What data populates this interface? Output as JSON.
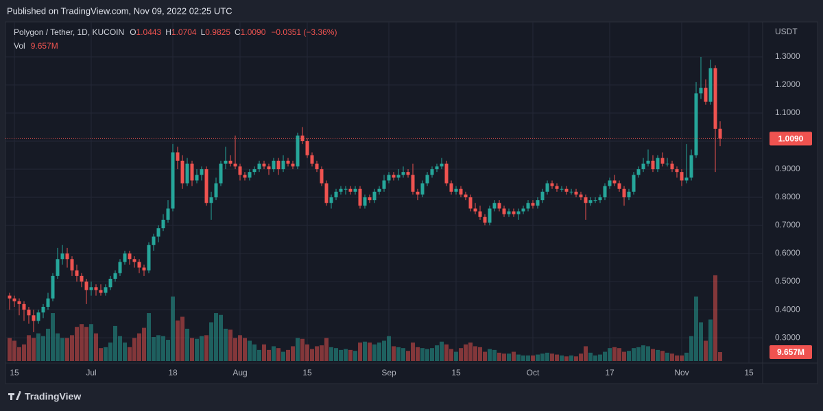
{
  "chart_data": {
    "type": "candlestick",
    "publish_note": "Published on TradingView.com, Nov 09, 2022 02:25 UTC",
    "symbol": "Polygon / Tether, 1D, KUCOIN",
    "legend": [
      {
        "key": "O",
        "value": 1.0443
      },
      {
        "key": "H",
        "value": 1.0704
      },
      {
        "key": "L",
        "value": 0.9825
      },
      {
        "key": "C",
        "value": {
          "value": 1.009,
          "label": "1.0090"
        }
      }
    ],
    "change": "−0.0351 (−3.36%)",
    "vol": {
      "label": "Vol",
      "value": 9.657,
      "value_label": "9.657M"
    },
    "last_price": {
      "value": 1.009,
      "label": "1.0090"
    },
    "y_unit": "USDT",
    "brand": "TradingView",
    "up_color": "#26a69a",
    "down_color": "#ef5350",
    "grid": true,
    "ylim": [
      0.2173,
      1.4049
    ],
    "yticks": [
      {
        "value": 0.3,
        "label": "0.3000"
      },
      {
        "value": 0.4,
        "label": "0.4000"
      },
      {
        "value": 0.5,
        "label": "0.5000"
      },
      {
        "value": 0.6,
        "label": "0.6000"
      },
      {
        "value": 0.7,
        "label": "0.7000"
      },
      {
        "value": 0.8,
        "label": "0.8000"
      },
      {
        "value": 0.9,
        "label": "0.9000"
      },
      {
        "value": 1.0,
        "label": "1.0000"
      },
      {
        "value": 1.1,
        "label": "1.1000"
      },
      {
        "value": 1.2,
        "label": "1.2000"
      },
      {
        "value": 1.3,
        "label": "1.3000"
      }
    ],
    "volume_ylim": [
      0,
      362
    ],
    "xlim": [
      "2022-06-13",
      "2022-11-18"
    ],
    "xticks": [
      {
        "value": "2022-06-15",
        "label": "15"
      },
      {
        "value": "2022-07-01",
        "label": "Jul"
      },
      {
        "value": "2022-07-18",
        "label": "18"
      },
      {
        "value": "2022-08-01",
        "label": "Aug"
      },
      {
        "value": "2022-08-15",
        "label": "15"
      },
      {
        "value": "2022-09-01",
        "label": "Sep"
      },
      {
        "value": "2022-09-15",
        "label": "15"
      },
      {
        "value": "2022-10-01",
        "label": "Oct"
      },
      {
        "value": "2022-10-17",
        "label": "17"
      },
      {
        "value": "2022-11-01",
        "label": "Nov"
      },
      {
        "value": "2022-11-15",
        "label": "15"
      }
    ],
    "x": [
      "2022-06-14",
      "2022-06-15",
      "2022-06-16",
      "2022-06-17",
      "2022-06-18",
      "2022-06-19",
      "2022-06-20",
      "2022-06-21",
      "2022-06-22",
      "2022-06-23",
      "2022-06-24",
      "2022-06-25",
      "2022-06-26",
      "2022-06-27",
      "2022-06-28",
      "2022-06-29",
      "2022-06-30",
      "2022-07-01",
      "2022-07-02",
      "2022-07-03",
      "2022-07-04",
      "2022-07-05",
      "2022-07-06",
      "2022-07-07",
      "2022-07-08",
      "2022-07-09",
      "2022-07-10",
      "2022-07-11",
      "2022-07-12",
      "2022-07-13",
      "2022-07-14",
      "2022-07-15",
      "2022-07-16",
      "2022-07-17",
      "2022-07-18",
      "2022-07-19",
      "2022-07-20",
      "2022-07-21",
      "2022-07-22",
      "2022-07-23",
      "2022-07-24",
      "2022-07-25",
      "2022-07-26",
      "2022-07-27",
      "2022-07-28",
      "2022-07-29",
      "2022-07-30",
      "2022-07-31",
      "2022-08-01",
      "2022-08-02",
      "2022-08-03",
      "2022-08-04",
      "2022-08-05",
      "2022-08-06",
      "2022-08-07",
      "2022-08-08",
      "2022-08-09",
      "2022-08-10",
      "2022-08-11",
      "2022-08-12",
      "2022-08-13",
      "2022-08-14",
      "2022-08-15",
      "2022-08-16",
      "2022-08-17",
      "2022-08-18",
      "2022-08-19",
      "2022-08-20",
      "2022-08-21",
      "2022-08-22",
      "2022-08-23",
      "2022-08-24",
      "2022-08-25",
      "2022-08-26",
      "2022-08-27",
      "2022-08-28",
      "2022-08-29",
      "2022-08-30",
      "2022-08-31",
      "2022-09-01",
      "2022-09-02",
      "2022-09-03",
      "2022-09-04",
      "2022-09-05",
      "2022-09-06",
      "2022-09-07",
      "2022-09-08",
      "2022-09-09",
      "2022-09-10",
      "2022-09-11",
      "2022-09-12",
      "2022-09-13",
      "2022-09-14",
      "2022-09-15",
      "2022-09-16",
      "2022-09-17",
      "2022-09-18",
      "2022-09-19",
      "2022-09-20",
      "2022-09-21",
      "2022-09-22",
      "2022-09-23",
      "2022-09-24",
      "2022-09-25",
      "2022-09-26",
      "2022-09-27",
      "2022-09-28",
      "2022-09-29",
      "2022-09-30",
      "2022-10-01",
      "2022-10-02",
      "2022-10-03",
      "2022-10-04",
      "2022-10-05",
      "2022-10-06",
      "2022-10-07",
      "2022-10-08",
      "2022-10-09",
      "2022-10-10",
      "2022-10-11",
      "2022-10-12",
      "2022-10-13",
      "2022-10-14",
      "2022-10-15",
      "2022-10-16",
      "2022-10-17",
      "2022-10-18",
      "2022-10-19",
      "2022-10-20",
      "2022-10-21",
      "2022-10-22",
      "2022-10-23",
      "2022-10-24",
      "2022-10-25",
      "2022-10-26",
      "2022-10-27",
      "2022-10-28",
      "2022-10-29",
      "2022-10-30",
      "2022-10-31",
      "2022-11-01",
      "2022-11-02",
      "2022-11-03",
      "2022-11-04",
      "2022-11-05",
      "2022-11-06",
      "2022-11-07",
      "2022-11-08",
      "2022-11-09"
    ],
    "ohlc": [
      [
        0.45,
        0.46,
        0.4,
        0.44
      ],
      [
        0.44,
        0.45,
        0.41,
        0.43
      ],
      [
        0.43,
        0.44,
        0.38,
        0.42
      ],
      [
        0.42,
        0.43,
        0.36,
        0.4
      ],
      [
        0.4,
        0.41,
        0.35,
        0.38
      ],
      [
        0.38,
        0.4,
        0.32,
        0.36
      ],
      [
        0.36,
        0.4,
        0.35,
        0.39
      ],
      [
        0.39,
        0.42,
        0.37,
        0.41
      ],
      [
        0.41,
        0.46,
        0.4,
        0.44
      ],
      [
        0.44,
        0.53,
        0.43,
        0.52
      ],
      [
        0.52,
        0.62,
        0.51,
        0.58
      ],
      [
        0.58,
        0.63,
        0.56,
        0.6
      ],
      [
        0.6,
        0.62,
        0.55,
        0.58
      ],
      [
        0.58,
        0.59,
        0.52,
        0.54
      ],
      [
        0.54,
        0.56,
        0.5,
        0.52
      ],
      [
        0.52,
        0.53,
        0.48,
        0.5
      ],
      [
        0.5,
        0.51,
        0.42,
        0.47
      ],
      [
        0.47,
        0.5,
        0.45,
        0.48
      ],
      [
        0.48,
        0.49,
        0.45,
        0.47
      ],
      [
        0.47,
        0.49,
        0.45,
        0.46
      ],
      [
        0.46,
        0.49,
        0.45,
        0.48
      ],
      [
        0.48,
        0.52,
        0.47,
        0.51
      ],
      [
        0.51,
        0.54,
        0.5,
        0.53
      ],
      [
        0.53,
        0.58,
        0.52,
        0.57
      ],
      [
        0.57,
        0.61,
        0.56,
        0.6
      ],
      [
        0.6,
        0.61,
        0.56,
        0.58
      ],
      [
        0.58,
        0.59,
        0.55,
        0.57
      ],
      [
        0.57,
        0.58,
        0.53,
        0.55
      ],
      [
        0.55,
        0.56,
        0.52,
        0.54
      ],
      [
        0.54,
        0.64,
        0.53,
        0.63
      ],
      [
        0.63,
        0.67,
        0.61,
        0.66
      ],
      [
        0.66,
        0.7,
        0.64,
        0.69
      ],
      [
        0.69,
        0.74,
        0.68,
        0.72
      ],
      [
        0.72,
        0.79,
        0.71,
        0.76
      ],
      [
        0.76,
        0.99,
        0.75,
        0.96
      ],
      [
        0.96,
        0.98,
        0.9,
        0.93
      ],
      [
        0.93,
        0.95,
        0.83,
        0.85
      ],
      [
        0.85,
        0.94,
        0.84,
        0.92
      ],
      [
        0.92,
        0.93,
        0.84,
        0.86
      ],
      [
        0.86,
        0.9,
        0.85,
        0.88
      ],
      [
        0.88,
        0.91,
        0.86,
        0.9
      ],
      [
        0.9,
        0.91,
        0.77,
        0.78
      ],
      [
        0.78,
        0.82,
        0.72,
        0.8
      ],
      [
        0.8,
        0.87,
        0.79,
        0.85
      ],
      [
        0.85,
        0.93,
        0.84,
        0.92
      ],
      [
        0.92,
        0.98,
        0.9,
        0.93
      ],
      [
        0.93,
        0.95,
        0.91,
        0.92
      ],
      [
        0.92,
        1.02,
        0.9,
        0.91
      ],
      [
        0.91,
        0.92,
        0.86,
        0.88
      ],
      [
        0.88,
        0.89,
        0.86,
        0.87
      ],
      [
        0.87,
        0.9,
        0.86,
        0.89
      ],
      [
        0.89,
        0.91,
        0.88,
        0.9
      ],
      [
        0.9,
        0.93,
        0.89,
        0.92
      ],
      [
        0.92,
        0.93,
        0.9,
        0.91
      ],
      [
        0.91,
        0.92,
        0.88,
        0.9
      ],
      [
        0.9,
        0.94,
        0.89,
        0.93
      ],
      [
        0.93,
        0.94,
        0.88,
        0.9
      ],
      [
        0.9,
        0.95,
        0.89,
        0.93
      ],
      [
        0.93,
        0.94,
        0.91,
        0.92
      ],
      [
        0.92,
        0.93,
        0.9,
        0.91
      ],
      [
        0.91,
        1.03,
        0.9,
        1.02
      ],
      [
        1.02,
        1.05,
        0.99,
        1.0
      ],
      [
        1.0,
        1.01,
        0.94,
        0.95
      ],
      [
        0.95,
        0.96,
        0.91,
        0.92
      ],
      [
        0.92,
        0.93,
        0.89,
        0.9
      ],
      [
        0.9,
        0.91,
        0.84,
        0.85
      ],
      [
        0.85,
        0.86,
        0.77,
        0.78
      ],
      [
        0.78,
        0.81,
        0.76,
        0.8
      ],
      [
        0.8,
        0.83,
        0.79,
        0.82
      ],
      [
        0.82,
        0.84,
        0.81,
        0.83
      ],
      [
        0.83,
        0.84,
        0.81,
        0.83
      ],
      [
        0.83,
        0.84,
        0.81,
        0.82
      ],
      [
        0.82,
        0.84,
        0.81,
        0.83
      ],
      [
        0.83,
        0.84,
        0.76,
        0.77
      ],
      [
        0.77,
        0.81,
        0.76,
        0.8
      ],
      [
        0.8,
        0.81,
        0.78,
        0.79
      ],
      [
        0.79,
        0.83,
        0.78,
        0.82
      ],
      [
        0.82,
        0.84,
        0.81,
        0.83
      ],
      [
        0.83,
        0.88,
        0.82,
        0.86
      ],
      [
        0.86,
        0.89,
        0.85,
        0.88
      ],
      [
        0.88,
        0.89,
        0.86,
        0.87
      ],
      [
        0.87,
        0.9,
        0.86,
        0.88
      ],
      [
        0.88,
        0.91,
        0.87,
        0.89
      ],
      [
        0.89,
        0.9,
        0.87,
        0.88
      ],
      [
        0.88,
        0.92,
        0.81,
        0.82
      ],
      [
        0.82,
        0.83,
        0.79,
        0.81
      ],
      [
        0.81,
        0.86,
        0.8,
        0.85
      ],
      [
        0.85,
        0.89,
        0.84,
        0.88
      ],
      [
        0.88,
        0.91,
        0.87,
        0.9
      ],
      [
        0.9,
        0.92,
        0.89,
        0.91
      ],
      [
        0.91,
        0.94,
        0.9,
        0.92
      ],
      [
        0.92,
        0.93,
        0.84,
        0.85
      ],
      [
        0.85,
        0.86,
        0.81,
        0.82
      ],
      [
        0.82,
        0.84,
        0.81,
        0.83
      ],
      [
        0.83,
        0.84,
        0.8,
        0.81
      ],
      [
        0.81,
        0.82,
        0.79,
        0.8
      ],
      [
        0.8,
        0.81,
        0.75,
        0.76
      ],
      [
        0.76,
        0.78,
        0.74,
        0.75
      ],
      [
        0.75,
        0.77,
        0.72,
        0.73
      ],
      [
        0.73,
        0.74,
        0.7,
        0.71
      ],
      [
        0.71,
        0.77,
        0.7,
        0.76
      ],
      [
        0.76,
        0.79,
        0.75,
        0.78
      ],
      [
        0.78,
        0.79,
        0.75,
        0.76
      ],
      [
        0.76,
        0.77,
        0.73,
        0.74
      ],
      [
        0.74,
        0.76,
        0.73,
        0.75
      ],
      [
        0.75,
        0.76,
        0.73,
        0.74
      ],
      [
        0.74,
        0.76,
        0.72,
        0.75
      ],
      [
        0.75,
        0.77,
        0.74,
        0.76
      ],
      [
        0.76,
        0.79,
        0.75,
        0.78
      ],
      [
        0.78,
        0.79,
        0.76,
        0.77
      ],
      [
        0.77,
        0.8,
        0.76,
        0.79
      ],
      [
        0.79,
        0.83,
        0.78,
        0.82
      ],
      [
        0.82,
        0.86,
        0.81,
        0.85
      ],
      [
        0.85,
        0.86,
        0.83,
        0.84
      ],
      [
        0.84,
        0.85,
        0.82,
        0.83
      ],
      [
        0.83,
        0.84,
        0.82,
        0.83
      ],
      [
        0.83,
        0.84,
        0.81,
        0.82
      ],
      [
        0.82,
        0.83,
        0.81,
        0.82
      ],
      [
        0.82,
        0.83,
        0.8,
        0.81
      ],
      [
        0.81,
        0.82,
        0.79,
        0.8
      ],
      [
        0.8,
        0.81,
        0.72,
        0.78
      ],
      [
        0.78,
        0.8,
        0.77,
        0.79
      ],
      [
        0.79,
        0.8,
        0.78,
        0.79
      ],
      [
        0.79,
        0.81,
        0.78,
        0.8
      ],
      [
        0.8,
        0.85,
        0.79,
        0.84
      ],
      [
        0.84,
        0.87,
        0.83,
        0.86
      ],
      [
        0.86,
        0.88,
        0.84,
        0.85
      ],
      [
        0.85,
        0.86,
        0.82,
        0.83
      ],
      [
        0.83,
        0.84,
        0.77,
        0.8
      ],
      [
        0.8,
        0.83,
        0.79,
        0.82
      ],
      [
        0.82,
        0.89,
        0.81,
        0.88
      ],
      [
        0.88,
        0.91,
        0.87,
        0.9
      ],
      [
        0.9,
        0.94,
        0.89,
        0.92
      ],
      [
        0.92,
        0.97,
        0.91,
        0.93
      ],
      [
        0.93,
        0.95,
        0.89,
        0.9
      ],
      [
        0.9,
        0.95,
        0.89,
        0.94
      ],
      [
        0.94,
        0.96,
        0.91,
        0.92
      ],
      [
        0.92,
        0.94,
        0.91,
        0.92
      ],
      [
        0.92,
        0.93,
        0.89,
        0.9
      ],
      [
        0.9,
        0.91,
        0.87,
        0.89
      ],
      [
        0.89,
        0.9,
        0.84,
        0.86
      ],
      [
        0.86,
        0.99,
        0.85,
        0.87
      ],
      [
        0.87,
        0.97,
        0.86,
        0.95
      ],
      [
        0.95,
        1.21,
        0.94,
        1.17
      ],
      [
        1.17,
        1.3,
        1.15,
        1.19
      ],
      [
        1.19,
        1.22,
        1.13,
        1.14
      ],
      [
        1.14,
        1.29,
        1.13,
        1.26
      ],
      [
        1.26,
        1.27,
        0.89,
        1.0441
      ],
      [
        1.0443,
        1.0704,
        0.9825,
        1.009
      ]
    ],
    "volume": [
      25,
      22,
      15,
      18,
      28,
      25,
      30,
      27,
      35,
      52,
      30,
      25,
      25,
      28,
      37,
      40,
      37,
      40,
      30,
      14,
      15,
      20,
      38,
      27,
      20,
      15,
      25,
      30,
      36,
      52,
      26,
      28,
      27,
      23,
      70,
      44,
      48,
      35,
      25,
      24,
      27,
      28,
      42,
      52,
      50,
      35,
      34,
      25,
      28,
      25,
      22,
      18,
      12,
      18,
      12,
      16,
      14,
      10,
      12,
      16,
      25,
      24,
      18,
      13,
      16,
      17,
      25,
      15,
      14,
      12,
      13,
      12,
      11,
      20,
      21,
      20,
      18,
      20,
      22,
      27,
      16,
      15,
      14,
      11,
      20,
      15,
      14,
      13,
      14,
      17,
      21,
      18,
      13,
      10,
      14,
      18,
      20,
      16,
      15,
      10,
      13,
      12,
      9,
      8,
      8,
      10,
      7,
      6,
      6,
      6,
      7,
      8,
      9,
      8,
      7,
      6,
      5,
      6,
      5,
      8,
      16,
      9,
      6,
      7,
      10,
      14,
      15,
      14,
      10,
      11,
      14,
      15,
      17,
      16,
      13,
      12,
      11,
      9,
      8,
      6,
      6,
      9,
      27,
      70,
      42,
      22,
      45,
      93,
      9.657
    ]
  }
}
